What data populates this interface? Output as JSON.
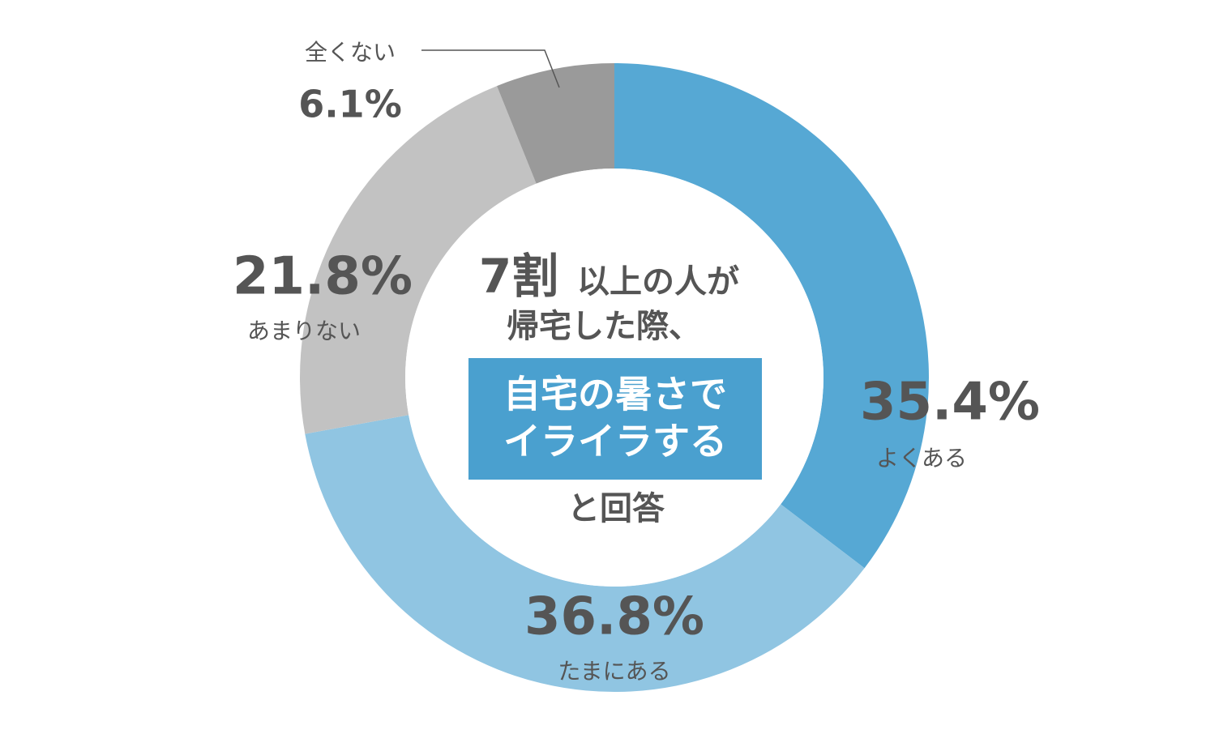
{
  "chart_data": {
    "type": "donut",
    "categories": [
      "よくある",
      "たまにある",
      "あまりない",
      "全くない"
    ],
    "values": [
      35.4,
      36.8,
      21.8,
      6.1
    ],
    "value_labels": [
      "35.4%",
      "36.8%",
      "21.8%",
      "6.1%"
    ],
    "colors": [
      "#56a8d4",
      "#90c5e2",
      "#c2c2c2",
      "#9a9a9a"
    ],
    "annotations": [
      "7割",
      "以上の人が",
      "帰宅した際、",
      "自宅の暑さで",
      "イライラする",
      "と回答"
    ]
  }
}
